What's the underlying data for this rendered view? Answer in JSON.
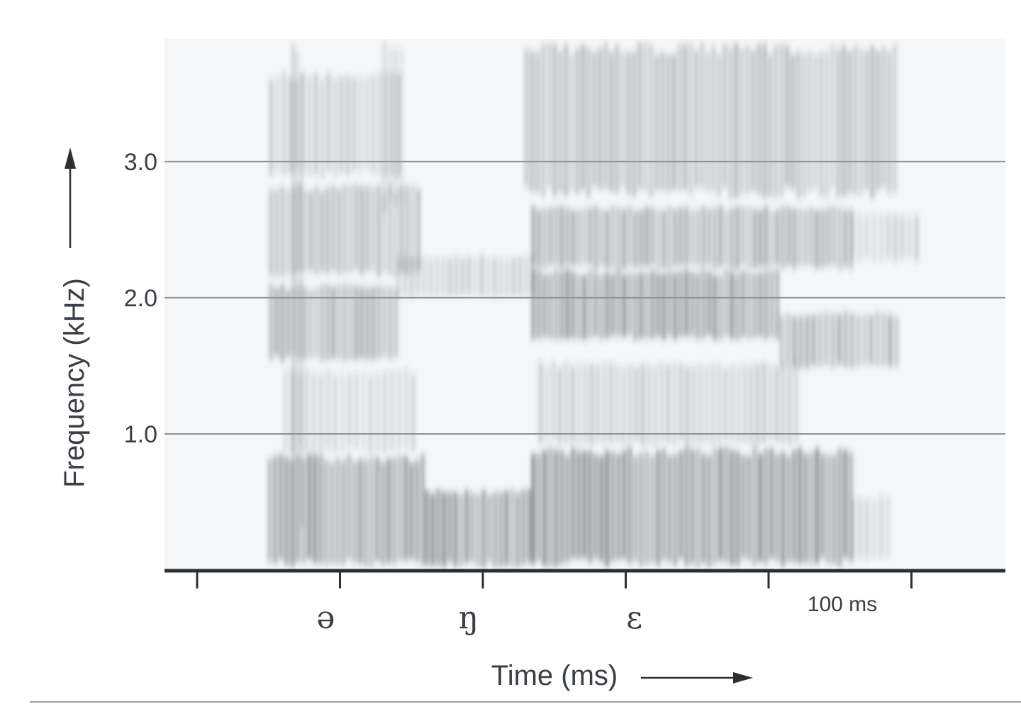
{
  "chart_data": {
    "type": "heatmap",
    "title": "",
    "ylabel": "Frequency (kHz)",
    "xlabel": "Time (ms)",
    "ylim": [
      0,
      3.9
    ],
    "yticks": [
      "1.0",
      "2.0",
      "3.0"
    ],
    "ytick_values": [
      1.0,
      2.0,
      3.0
    ],
    "grid": true,
    "xlim": [
      -10,
      275
    ],
    "xticks": [
      0,
      50,
      100,
      150,
      200,
      250
    ],
    "segments": [
      {
        "symbol": "ə",
        "x": 45
      },
      {
        "symbol": "ŋ",
        "x": 95
      },
      {
        "symbol": "ɛ",
        "x": 153
      }
    ],
    "scale_bar": {
      "label": "100 ms",
      "from": 150,
      "to": 250
    },
    "formants": [
      {
        "segment": "ə",
        "t_start": 15,
        "t_end": 55,
        "F1": 0.6,
        "F2": 1.8,
        "F3": 2.6
      },
      {
        "segment": "ŋ",
        "t_start": 55,
        "t_end": 110,
        "F1": 0.3,
        "F2": 2.05
      },
      {
        "segment": "ɛ",
        "t_start": 110,
        "t_end": 245,
        "F1": 0.7,
        "F2": 1.8,
        "F3": 2.4
      }
    ],
    "colors": {
      "background": "#f4f6f8",
      "energy": "#3d474f",
      "gridline": "#8a929a",
      "axis": "#2b2f33"
    }
  }
}
